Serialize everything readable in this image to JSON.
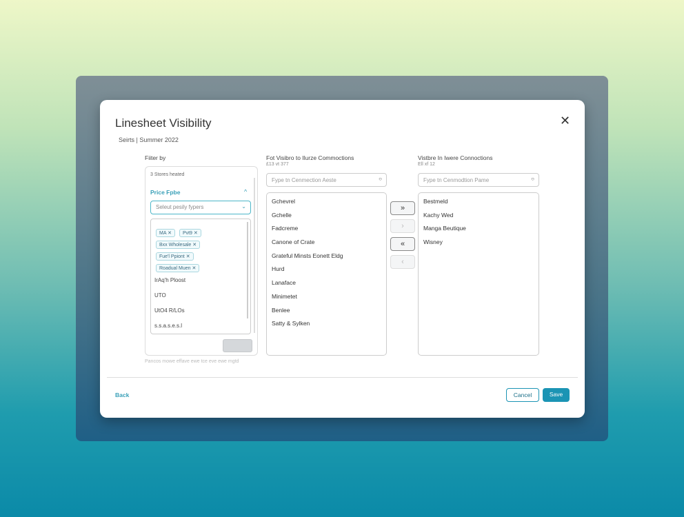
{
  "dialog": {
    "title": "Linesheet Visibility",
    "subtitle": "Seirts | Summer 2022",
    "close_icon": "close-icon"
  },
  "filter": {
    "label": "Fiiter by",
    "count_text": "3 Stores heated",
    "section": "Price Fpbe",
    "select_placeholder": "Seleut pesily fypers",
    "chips": [
      "MA",
      "Pvt9",
      "Bxx Wholesale",
      "Fue'l Ppiont",
      "Roadual Muen"
    ],
    "options": [
      "IrAq'h Ploost",
      "UTO",
      "UtO4 R/LOs",
      "s.s.a.s.e.s.l"
    ],
    "help_text": "Pancos mowe effave ewe tce eve ewe mgtd"
  },
  "not_visible": {
    "title": "Fot Visibro to Ilurze Commoctions",
    "count": "£13 vt 377",
    "search_placeholder": "Fype tn Cenmection Aeste",
    "items": [
      "Gchevrel",
      "Gchelle",
      "Fadcreme",
      "Canone of Crate",
      "Grateful Minsts Eonett Eldg",
      "Hurd",
      "Lanaface",
      "Minimetet",
      "Benlee",
      "Satty & Sylken"
    ]
  },
  "visible": {
    "title": "Vistbre In Iwere Connoctions",
    "count": "Ell xf 12",
    "search_placeholder": "Fype tn Cenmodtion Pame",
    "items": [
      "Bestmeld",
      "Kachy Wed",
      "Manga Beutique",
      "Wisney"
    ]
  },
  "transfer": {
    "add_all": "»",
    "add": "›",
    "remove_all": "«",
    "remove": "‹"
  },
  "footer": {
    "back": "Back",
    "cancel": "Cancel",
    "save": "Save"
  },
  "colors": {
    "accent": "#1b94b4",
    "link": "#3aa0b8"
  }
}
